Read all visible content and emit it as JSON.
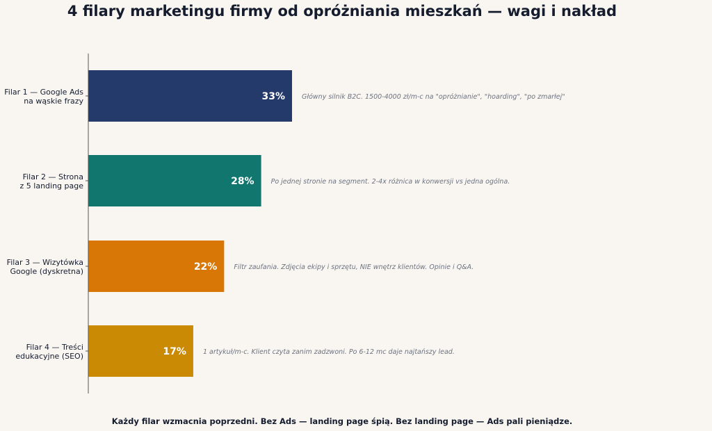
{
  "title": "4 filary marketingu firmy od opróżniania mieszkań — wagi i nakład",
  "footer": "Każdy filar wzmacnia poprzedni. Bez Ads — landing page śpią. Bez landing page — Ads pali pieniądze.",
  "chart_data": {
    "type": "bar",
    "orientation": "horizontal",
    "categories": [
      [
        "Filar 1 — Google Ads",
        "na wąskie frazy"
      ],
      [
        "Filar 2 — Strona",
        "z 5 landing page"
      ],
      [
        "Filar 3 — Wizytówka",
        "Google (dyskretna)"
      ],
      [
        "Filar 4 — Treści",
        "edukacyjne (SEO)"
      ]
    ],
    "values": [
      33,
      28,
      22,
      17
    ],
    "value_labels": [
      "33%",
      "28%",
      "22%",
      "17%"
    ],
    "colors": [
      "#233a6b",
      "#11766e",
      "#d97706",
      "#ca8a04"
    ],
    "annotations": [
      "Główny silnik B2C. 1500-4000 zł/m-c na \"opróżnianie\", \"hoarding\", \"po zmarłej\"",
      "Po jednej stronie na segment. 2-4x różnica w konwersji vs jedna ogólna.",
      "Filtr zaufania. Zdjęcia ekipy i sprzętu, NIE wnętrz klientów. Opinie i Q&A.",
      "1 artykuł/m-c. Klient czyta zanim zadzwoni. Po 6-12 mc daje najtańszy lead."
    ],
    "xlim": [
      0,
      100
    ],
    "grid": false,
    "xaxis_visible": false
  }
}
